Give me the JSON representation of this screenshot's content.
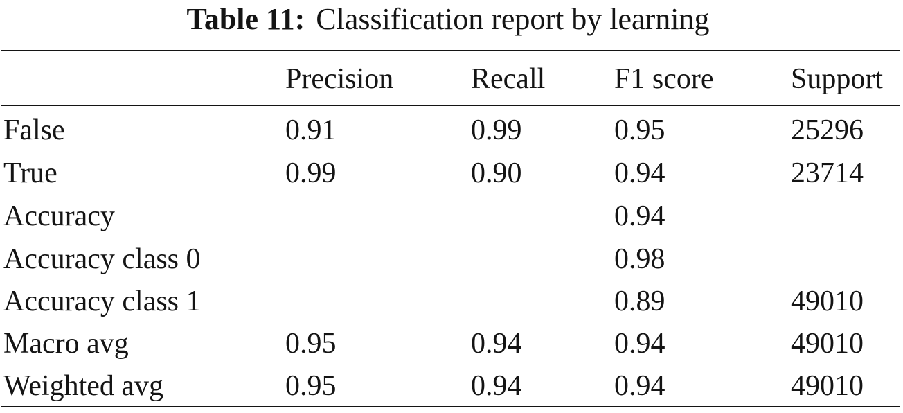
{
  "caption": {
    "label": "Table 11:",
    "text": "Classification report by learning"
  },
  "table": {
    "headers": [
      "",
      "Precision",
      "Recall",
      "F1 score",
      "Support"
    ],
    "rows": [
      [
        "False",
        "0.91",
        "0.99",
        "0.95",
        "25296"
      ],
      [
        "True",
        "0.99",
        "0.90",
        "0.94",
        "23714"
      ],
      [
        "Accuracy",
        "",
        "",
        "0.94",
        ""
      ],
      [
        "Accuracy class 0",
        "",
        "",
        "0.98",
        ""
      ],
      [
        "Accuracy class 1",
        "",
        "",
        "0.89",
        "49010"
      ],
      [
        "Macro avg",
        "0.95",
        "0.94",
        "0.94",
        "49010"
      ],
      [
        "Weighted avg",
        "0.95",
        "0.94",
        "0.94",
        "49010"
      ]
    ]
  }
}
